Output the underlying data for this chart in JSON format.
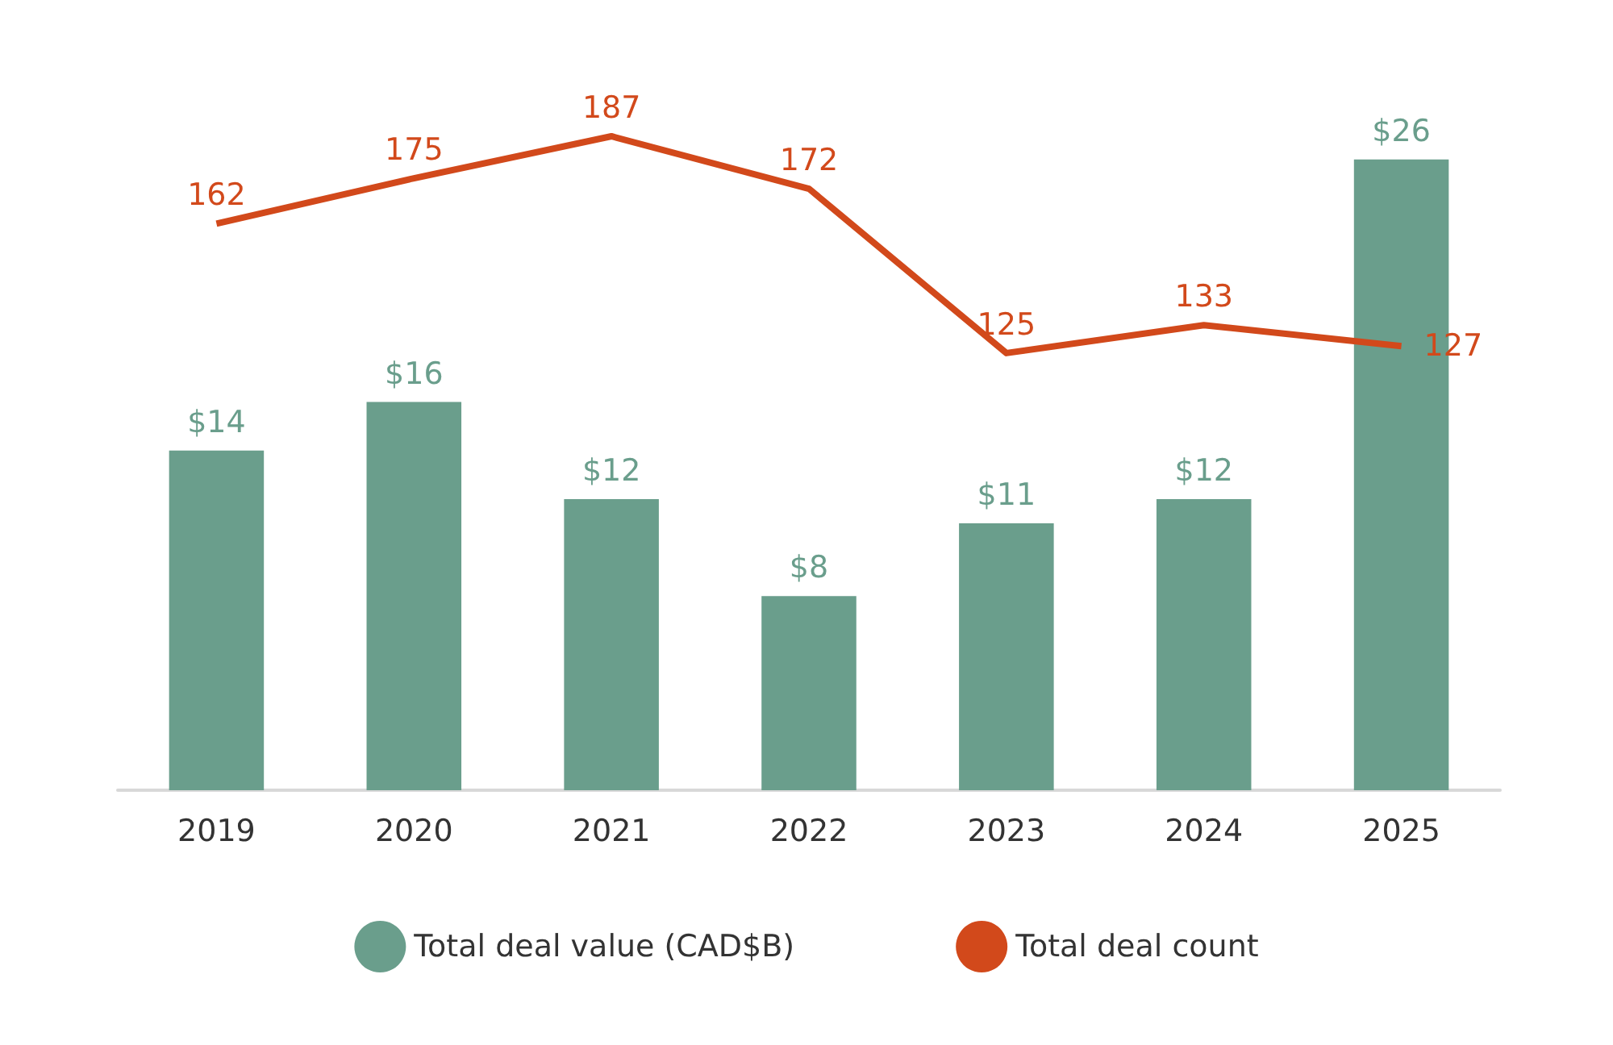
{
  "chart_data": {
    "type": "bar",
    "categories": [
      "2019",
      "2020",
      "2021",
      "2022",
      "2023",
      "2024",
      "2025"
    ],
    "series": [
      {
        "name": "Total deal value (CAD$B)",
        "color": "#6a9e8c",
        "values": [
          14,
          16,
          12,
          8,
          11,
          12,
          26
        ],
        "value_labels": [
          "$14",
          "$16",
          "$12",
          "$8",
          "$11",
          "$12",
          "$26"
        ]
      },
      {
        "name": "Total deal count",
        "type": "line",
        "axis": "y2",
        "color": "#d2491b",
        "values": [
          162,
          175,
          187,
          172,
          125,
          133,
          127
        ],
        "value_labels": [
          "162",
          "175",
          "187",
          "172",
          "125",
          "133",
          "127"
        ],
        "marker": "none"
      }
    ],
    "legend": "bottom"
  }
}
